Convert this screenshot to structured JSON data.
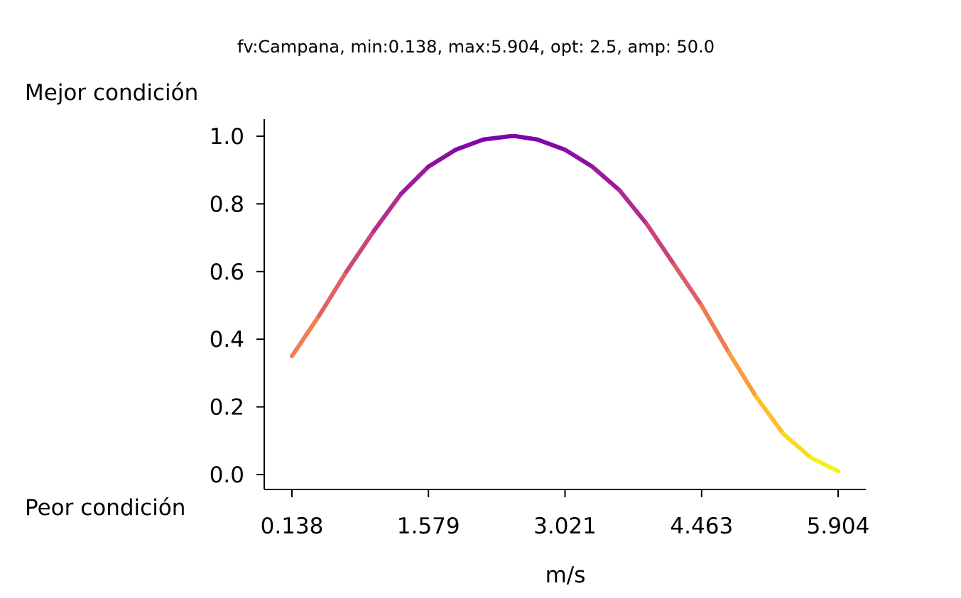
{
  "chart_data": {
    "type": "line",
    "title": "fv:Campana, min:0.138, max:5.904, opt: 2.5, amp: 50.0",
    "xlabel": "m/s",
    "ylabel": "",
    "top_label": "Mejor condición",
    "bottom_label": "Peor condición",
    "xlim": [
      0.138,
      5.904
    ],
    "ylim": [
      0.0,
      1.0
    ],
    "x_ticks": [
      "0.138",
      "1.579",
      "3.021",
      "4.463",
      "5.904"
    ],
    "y_ticks": [
      "0.0",
      "0.2",
      "0.4",
      "0.6",
      "0.8",
      "1.0"
    ],
    "grid": false,
    "colormap": "plasma",
    "series": [
      {
        "x": [
          0.138,
          0.426,
          0.714,
          1.003,
          1.291,
          1.579,
          1.867,
          2.156,
          2.444,
          2.5,
          2.732,
          3.021,
          3.309,
          3.597,
          3.885,
          4.174,
          4.462,
          4.751,
          5.039,
          5.327,
          5.616,
          5.904
        ],
        "y": [
          0.35,
          0.47,
          0.6,
          0.72,
          0.83,
          0.91,
          0.96,
          0.99,
          1.0,
          1.0,
          0.99,
          0.96,
          0.91,
          0.84,
          0.74,
          0.62,
          0.5,
          0.36,
          0.23,
          0.12,
          0.05,
          0.01
        ]
      }
    ]
  }
}
